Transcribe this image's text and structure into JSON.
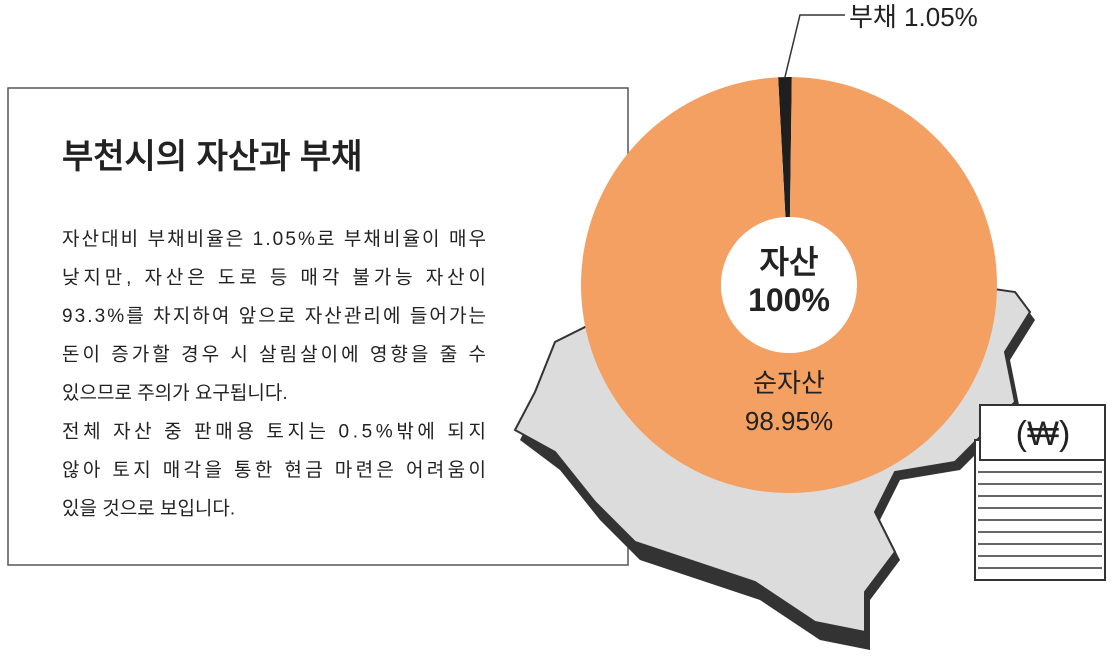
{
  "chart_data": {
    "type": "pie",
    "title": "부천시의 자산과 부채",
    "description": [
      "자산대비 부채비율은 1.05%로 부채비율이 매우",
      "낮지만, 자산은 도로 등 매각 불가능 자산이",
      "93.3%를 차지하여 앞으로 자산관리에 들어가는",
      "돈이 증가할 경우 시 살림살이에 영향을 줄 수",
      "있으므로 주의가 요구됩니다.",
      "전체 자산 중 판매용 토지는 0.5%밖에 되지",
      "않아 토지 매각을 통한 현금 마련은 어려움이",
      "있을 것으로 보입니다."
    ],
    "categories": [
      "부채",
      "순자산"
    ],
    "values": [
      1.05,
      98.95
    ],
    "value_labels": [
      "1.05%",
      "98.95%"
    ],
    "colors": [
      "#1f1f1f",
      "#f4a063"
    ],
    "center_title": "자산",
    "center_value": 100,
    "center_value_label": "100%"
  }
}
